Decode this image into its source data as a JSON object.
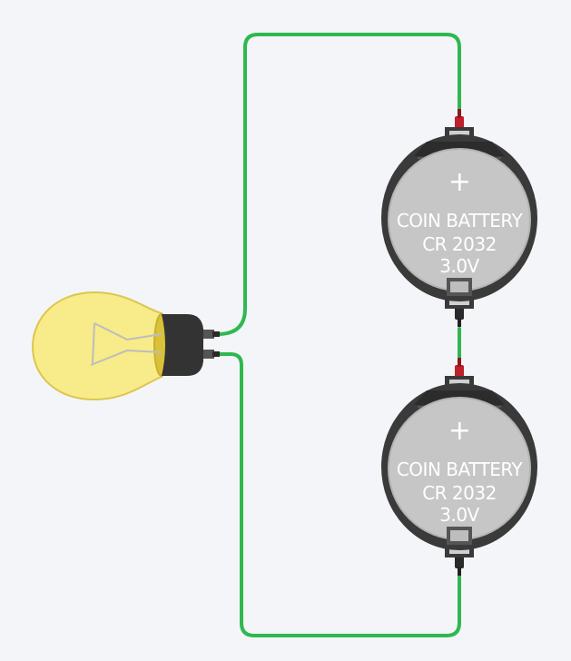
{
  "colors": {
    "background": "#f3f5f8",
    "wire": "#2fb84f",
    "battery_body": "#c6c6c6",
    "holder": "#3a3a3a",
    "bulb_glass": "#f7eb8a",
    "bulb_outline": "#dcc64f",
    "terminal_positive": "#c0202a",
    "label": "#ffffff"
  },
  "bulb": {
    "name": "light-bulb"
  },
  "batteries": [
    {
      "symbol": "+",
      "line1": "COIN BATTERY",
      "line2": "CR 2032",
      "line3": "3.0V"
    },
    {
      "symbol": "+",
      "line1": "COIN BATTERY",
      "line2": "CR 2032",
      "line3": "3.0V"
    }
  ]
}
